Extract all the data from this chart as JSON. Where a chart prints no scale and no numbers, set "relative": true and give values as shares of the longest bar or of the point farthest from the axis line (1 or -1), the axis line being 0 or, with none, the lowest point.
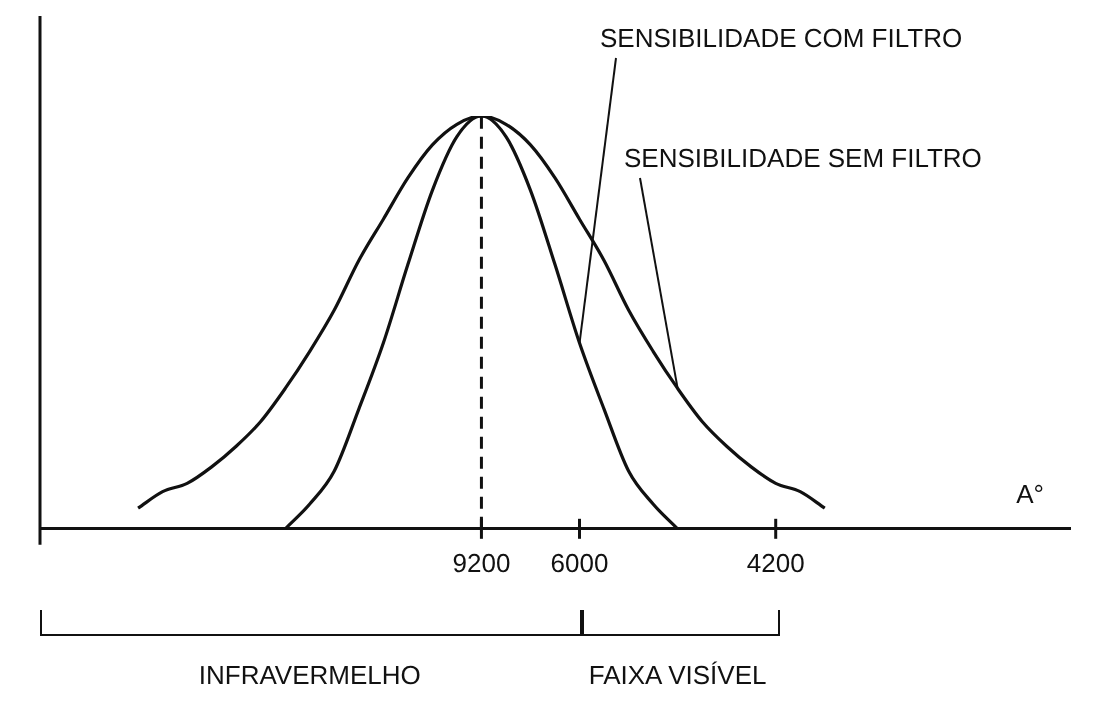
{
  "chart_data": {
    "type": "line",
    "relative": true,
    "xlabel": "A°",
    "categories": [
      null,
      null,
      null,
      null,
      null,
      null,
      null,
      null,
      null,
      null,
      null,
      null,
      null,
      null,
      null,
      null,
      null,
      null,
      "9200",
      null,
      null,
      null,
      "6000",
      null,
      null,
      null,
      null,
      null,
      null,
      null,
      "4200",
      null,
      null,
      null,
      null,
      null,
      null,
      null,
      null,
      null,
      null,
      null,
      null
    ],
    "series": [
      {
        "name": "SENSIBILIDADE COM FILTRO",
        "color": "#111111",
        "values": [
          null,
          null,
          null,
          null,
          null,
          null,
          null,
          null,
          null,
          null,
          0,
          0.06,
          0.14,
          0.29,
          0.45,
          0.64,
          0.82,
          0.95,
          1,
          0.95,
          0.82,
          0.64,
          0.45,
          0.29,
          0.14,
          0.06,
          0,
          null,
          null,
          null,
          null,
          null,
          null,
          null,
          null,
          null,
          null,
          null,
          null,
          null,
          null,
          null,
          null
        ]
      },
      {
        "name": "SENSIBILIDADE SEM FILTRO",
        "color": "#111111",
        "values": [
          null,
          null,
          null,
          null,
          0.05,
          0.09,
          0.11,
          0.15,
          0.2,
          0.26,
          0.34,
          0.43,
          0.53,
          0.65,
          0.75,
          0.85,
          0.93,
          0.98,
          1,
          0.98,
          0.93,
          0.85,
          0.75,
          0.65,
          0.53,
          0.43,
          0.34,
          0.26,
          0.2,
          0.15,
          0.11,
          0.09,
          0.05,
          null,
          null,
          null,
          null,
          null,
          null,
          null,
          null,
          null,
          null
        ]
      }
    ],
    "ref_lines": [
      {
        "axis": "x",
        "value": "9200",
        "line_style": "dashed"
      }
    ],
    "annotations": [
      "INFRAVERMELHO",
      "FAIXA VISÍVEL"
    ],
    "grid": false,
    "legend": false,
    "marker": "none",
    "line_style": "solid"
  }
}
